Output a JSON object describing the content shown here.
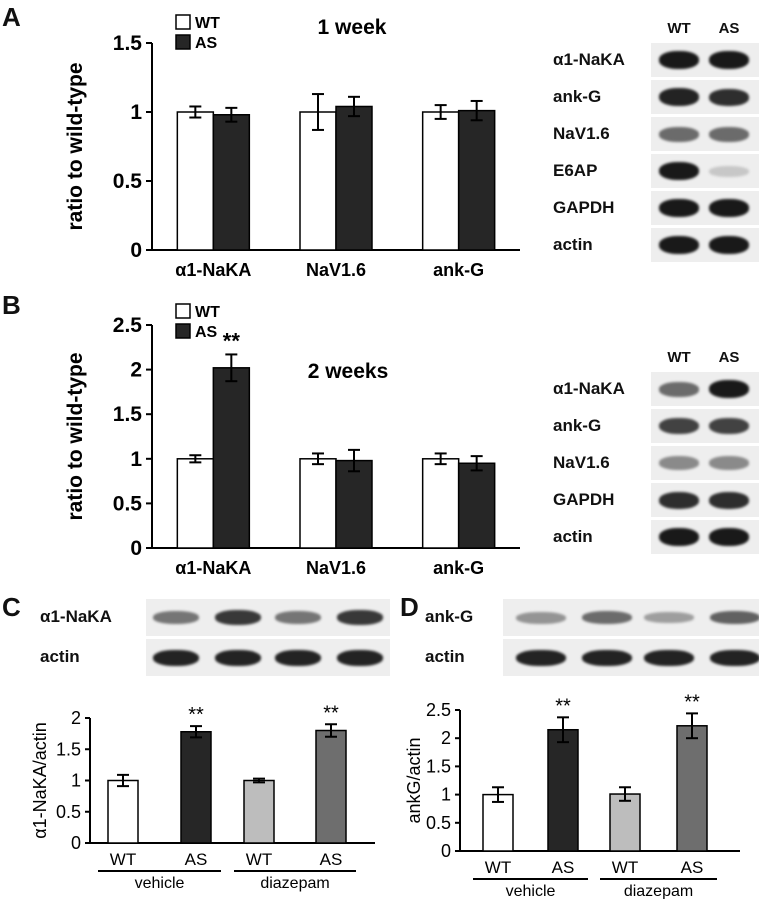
{
  "panels": [
    {
      "letter": "A",
      "subtitle": "1 week",
      "chart_data": {
        "type": "bar",
        "ylabel": "ratio to wild-type",
        "ylim": [
          0,
          1.5
        ],
        "yticks": [
          "0",
          "0.5",
          "1",
          "1.5"
        ],
        "categories": [
          "α1-NaKA",
          "NaV1.6",
          "ank-G"
        ],
        "series": [
          {
            "name": "WT",
            "values": [
              1.0,
              1.0,
              1.0
            ],
            "errors": [
              0.04,
              0.13,
              0.05
            ],
            "color": "#ffffff"
          },
          {
            "name": "AS",
            "values": [
              0.98,
              1.04,
              1.01
            ],
            "errors": [
              0.05,
              0.07,
              0.07
            ],
            "color": "#262626"
          }
        ],
        "legend": "top-left",
        "annotations": []
      },
      "blot": {
        "lanes": [
          "WT",
          "AS"
        ],
        "rows": [
          {
            "label": "α1-NaKA",
            "intensity": [
              1.0,
              1.0
            ]
          },
          {
            "label": "ank-G",
            "intensity": [
              0.95,
              0.9
            ]
          },
          {
            "label": "NaV1.6",
            "intensity": [
              0.6,
              0.6
            ]
          },
          {
            "label": "E6AP",
            "intensity": [
              1.0,
              0.15
            ]
          },
          {
            "label": "GAPDH",
            "intensity": [
              1.0,
              1.0
            ]
          },
          {
            "label": "actin",
            "intensity": [
              1.0,
              1.0
            ]
          }
        ]
      }
    },
    {
      "letter": "B",
      "subtitle": "2 weeks",
      "chart_data": {
        "type": "bar",
        "ylabel": "ratio to wild-type",
        "ylim": [
          0,
          2.5
        ],
        "yticks": [
          "0",
          "0.5",
          "1",
          "1.5",
          "2",
          "2.5"
        ],
        "categories": [
          "α1-NaKA",
          "NaV1.6",
          "ank-G"
        ],
        "series": [
          {
            "name": "WT",
            "values": [
              1.0,
              1.0,
              1.0
            ],
            "errors": [
              0.04,
              0.06,
              0.06
            ],
            "color": "#ffffff"
          },
          {
            "name": "AS",
            "values": [
              2.02,
              0.98,
              0.95
            ],
            "errors": [
              0.15,
              0.12,
              0.08
            ],
            "color": "#262626"
          }
        ],
        "legend": "top-left",
        "annotations": [
          {
            "category": "α1-NaKA",
            "series": "AS",
            "text": "**"
          }
        ]
      },
      "blot": {
        "lanes": [
          "WT",
          "AS"
        ],
        "rows": [
          {
            "label": "α1-NaKA",
            "intensity": [
              0.6,
              1.0
            ]
          },
          {
            "label": "ank-G",
            "intensity": [
              0.8,
              0.8
            ]
          },
          {
            "label": "NaV1.6",
            "intensity": [
              0.45,
              0.45
            ]
          },
          {
            "label": "GAPDH",
            "intensity": [
              0.9,
              0.9
            ]
          },
          {
            "label": "actin",
            "intensity": [
              1.0,
              1.0
            ]
          }
        ]
      }
    },
    {
      "letter": "C",
      "chart_data": {
        "type": "bar",
        "ylabel": "α1-NaKA/actin",
        "ylim": [
          0,
          2
        ],
        "yticks": [
          "0",
          "0.5",
          "1",
          "1.5",
          "2"
        ],
        "categories": [
          "WT",
          "AS",
          "WT",
          "AS"
        ],
        "groups": [
          {
            "label": "vehicle"
          },
          {
            "label": "diazepam"
          }
        ],
        "values": [
          1.0,
          1.78,
          1.0,
          1.8
        ],
        "errors": [
          0.09,
          0.09,
          0.03,
          0.1
        ],
        "colors": [
          "#ffffff",
          "#262626",
          "#bdbdbd",
          "#6e6e6e"
        ],
        "annotations": [
          "",
          "**",
          "",
          "**"
        ]
      },
      "blot": {
        "lanes": 4,
        "rows": [
          {
            "label": "α1-NaKA",
            "intensity": [
              0.55,
              0.85,
              0.55,
              0.85
            ]
          },
          {
            "label": "actin",
            "intensity": [
              0.95,
              0.95,
              0.95,
              0.95
            ]
          }
        ]
      }
    },
    {
      "letter": "D",
      "chart_data": {
        "type": "bar",
        "ylabel": "ankG/actin",
        "ylim": [
          0,
          2.5
        ],
        "yticks": [
          "0",
          "0.5",
          "1",
          "1.5",
          "2",
          "2.5"
        ],
        "categories": [
          "WT",
          "AS",
          "WT",
          "AS"
        ],
        "groups": [
          {
            "label": "vehicle"
          },
          {
            "label": "diazepam"
          }
        ],
        "values": [
          1.0,
          2.15,
          1.01,
          2.22
        ],
        "errors": [
          0.13,
          0.22,
          0.12,
          0.22
        ],
        "colors": [
          "#ffffff",
          "#262626",
          "#bdbdbd",
          "#6e6e6e"
        ],
        "annotations": [
          "",
          "**",
          "",
          "**"
        ]
      },
      "blot": {
        "lanes": 4,
        "rows": [
          {
            "label": "ank-G",
            "intensity": [
              0.4,
              0.6,
              0.35,
              0.65
            ]
          },
          {
            "label": "actin",
            "intensity": [
              0.95,
              0.95,
              0.95,
              0.95
            ]
          }
        ]
      }
    }
  ]
}
